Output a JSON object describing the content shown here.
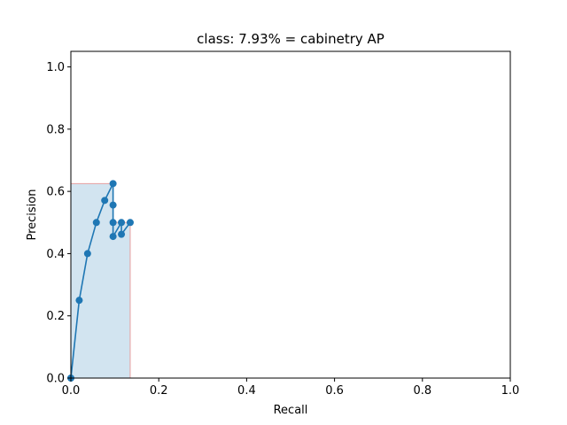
{
  "chart_data": {
    "type": "line",
    "title": "class: 7.93% = cabinetry AP",
    "xlabel": "Recall",
    "ylabel": "Precision",
    "xlim": [
      0.0,
      1.0
    ],
    "ylim": [
      0.0,
      1.05
    ],
    "xticks": [
      0.0,
      0.2,
      0.4,
      0.6,
      0.8,
      1.0
    ],
    "yticks": [
      0.0,
      0.2,
      0.4,
      0.6,
      0.8,
      1.0
    ],
    "xtick_labels": [
      "0.0",
      "0.2",
      "0.4",
      "0.6",
      "0.8",
      "1.0"
    ],
    "ytick_labels": [
      "0.0",
      "0.2",
      "0.4",
      "0.6",
      "0.8",
      "1.0"
    ],
    "grid": false,
    "series": [
      {
        "type": "line",
        "color": "#1f77b4",
        "marker": "circle",
        "x": [
          0.0,
          0.019,
          0.038,
          0.058,
          0.077,
          0.096,
          0.096,
          0.096,
          0.096,
          0.115,
          0.115,
          0.135
        ],
        "y": [
          0.0,
          0.25,
          0.4,
          0.5,
          0.571,
          0.625,
          0.556,
          0.5,
          0.455,
          0.5,
          0.462,
          0.5
        ]
      },
      {
        "type": "area",
        "fill_color": "#1f77b4",
        "fill_opacity": 0.2,
        "edge_color": "#e8a0a0",
        "x": [
          0.0,
          0.096,
          0.096,
          0.135,
          0.135
        ],
        "y": [
          0.625,
          0.625,
          0.5,
          0.5,
          0.0
        ]
      }
    ]
  }
}
